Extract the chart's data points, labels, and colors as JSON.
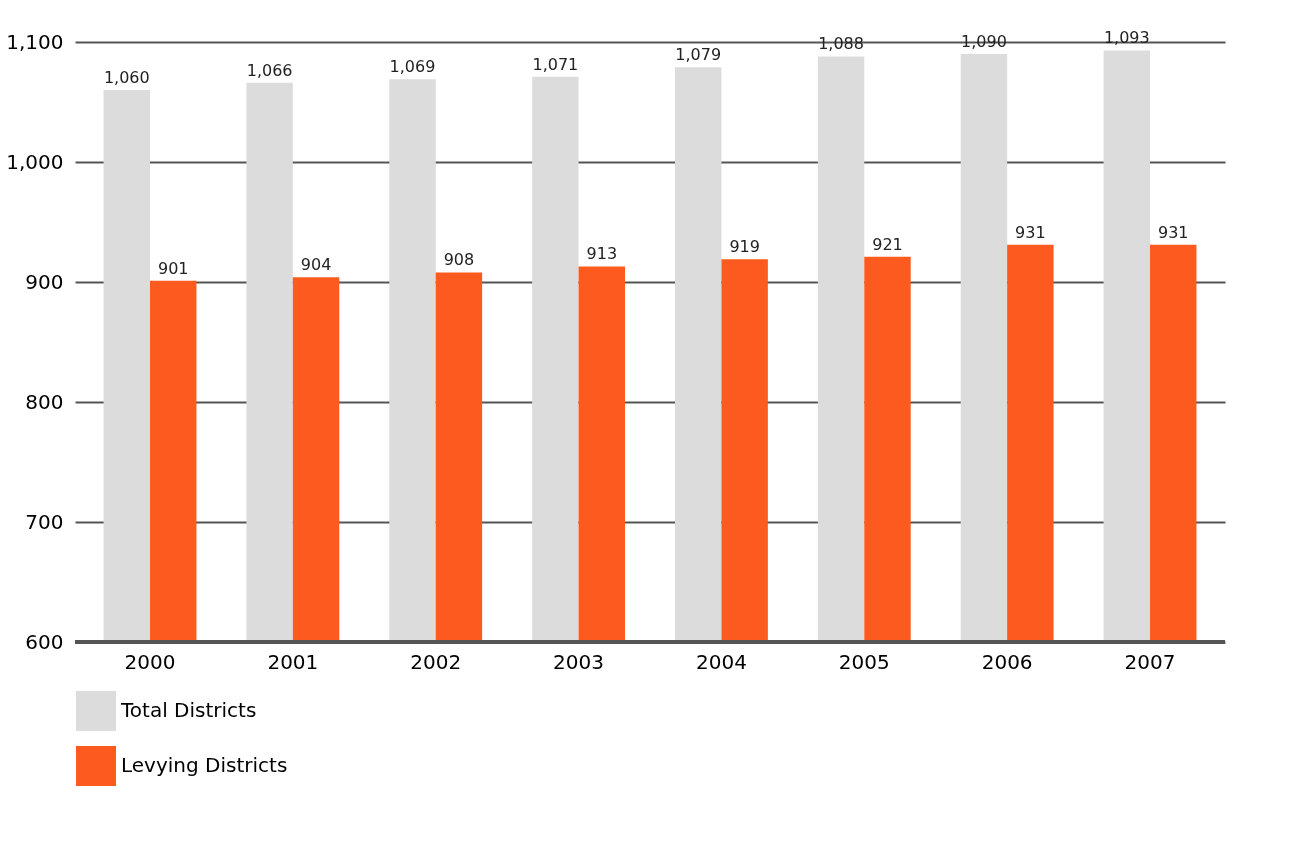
{
  "chart_data": {
    "type": "bar",
    "categories": [
      "2000",
      "2001",
      "2002",
      "2003",
      "2004",
      "2005",
      "2006",
      "2007"
    ],
    "series": [
      {
        "name": "Total Districts",
        "color": "#dcdcdc",
        "values": [
          1060,
          1066,
          1069,
          1071,
          1079,
          1088,
          1090,
          1093
        ],
        "value_labels": [
          "1,060",
          "1,066",
          "1,069",
          "1,071",
          "1,079",
          "1,088",
          "1,090",
          "1,093"
        ]
      },
      {
        "name": "Levying Districts",
        "color": "#fc5a1e",
        "values": [
          901,
          904,
          908,
          913,
          919,
          921,
          931,
          931
        ],
        "value_labels": [
          "901",
          "904",
          "908",
          "913",
          "919",
          "921",
          "931",
          "931"
        ]
      }
    ],
    "ylim": [
      600,
      1100
    ],
    "yticks": [
      {
        "value": 600,
        "label": "600"
      },
      {
        "value": 700,
        "label": "700"
      },
      {
        "value": 800,
        "label": "800"
      },
      {
        "value": 900,
        "label": "900"
      },
      {
        "value": 1000,
        "label": "1,000"
      },
      {
        "value": 1100,
        "label": "1,100"
      }
    ],
    "grid": "y",
    "legend": "bottom"
  }
}
